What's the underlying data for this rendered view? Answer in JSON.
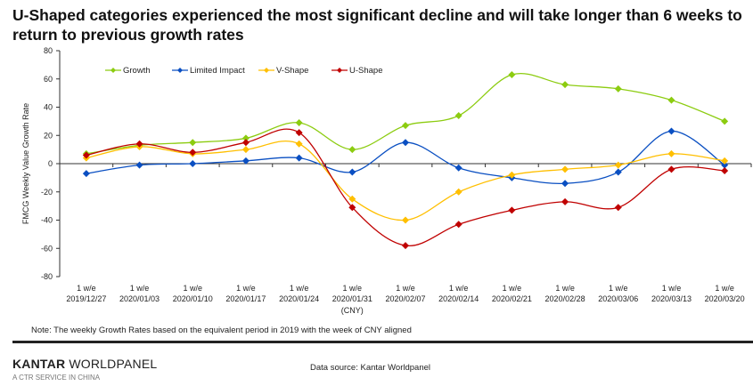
{
  "chart_data": {
    "type": "line",
    "title": "U-Shaped categories experienced the most significant decline and will take longer than 6 weeks to return to previous growth rates",
    "ylabel": "FMCG Weekly  Value Growth Rate",
    "xlabel": "",
    "ylim": [
      -80,
      80
    ],
    "yticks": [
      "80",
      "60",
      "40",
      "20",
      "0",
      "-20",
      "-40",
      "-60",
      "-80"
    ],
    "ytick_values": [
      80,
      60,
      40,
      20,
      0,
      -20,
      -40,
      -60,
      -80
    ],
    "grid": false,
    "legend": "top",
    "categories_line1": [
      "1 w/e",
      "1 w/e",
      "1 w/e",
      "1 w/e",
      "1 w/e",
      "1 w/e",
      "1 w/e",
      "1 w/e",
      "1 w/e",
      "1 w/e",
      "1 w/e",
      "1 w/e",
      "1 w/e"
    ],
    "categories": [
      "2019/12/27",
      "2020/01/03",
      "2020/01/10",
      "2020/01/17",
      "2020/01/24",
      "2020/01/31",
      "2020/02/07",
      "2020/02/14",
      "2020/02/21",
      "2020/02/28",
      "2020/03/06",
      "2020/03/13",
      "2020/03/20"
    ],
    "cny_label": "(CNY)",
    "series": [
      {
        "name": "Growth",
        "color": "#8ccc10",
        "values": [
          7,
          13,
          15,
          18,
          29,
          10,
          27,
          34,
          63,
          56,
          53,
          45,
          30
        ]
      },
      {
        "name": "Limited Impact",
        "color": "#0a4fc2",
        "values": [
          -7,
          -1,
          0,
          2,
          4,
          -6,
          15,
          -3,
          -10,
          -14,
          -6,
          23,
          -1
        ]
      },
      {
        "name": "V-Shape",
        "color": "#ffbf00",
        "values": [
          4,
          12,
          7,
          10,
          14,
          -25,
          -40,
          -20,
          -8,
          -4,
          -1,
          7,
          2
        ]
      },
      {
        "name": "U-Shape",
        "color": "#c00000",
        "values": [
          6,
          14,
          8,
          15,
          22,
          -31,
          -58,
          -43,
          -33,
          -27,
          -31,
          -4,
          -5
        ]
      }
    ]
  },
  "note": "Note: The weekly Growth Rates based on the equivalent period in 2019 with the week of CNY aligned",
  "footer": {
    "brand_bold": "KANTAR",
    "brand_rest": " WORLDPANEL",
    "tagline": "A CTR SERVICE IN CHINA",
    "source": "Data source: Kantar Worldpanel"
  }
}
